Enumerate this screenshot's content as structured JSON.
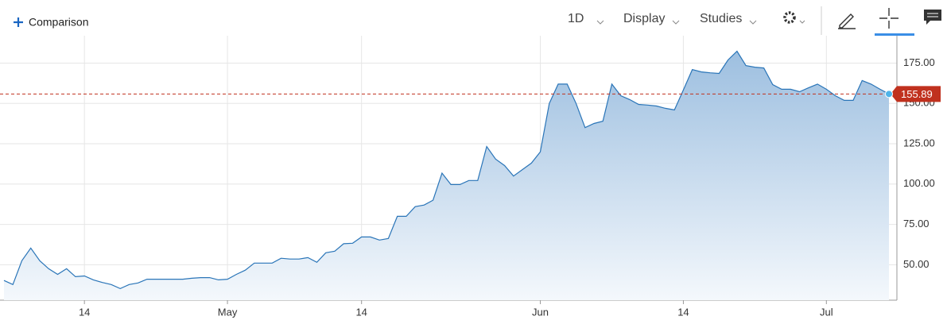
{
  "toolbar": {
    "comparison": "Comparison",
    "interval": "1D",
    "display": "Display",
    "studies": "Studies"
  },
  "chart_data": {
    "type": "area",
    "categories": [
      null,
      null,
      null,
      null,
      null,
      null,
      null,
      null,
      null,
      "14",
      null,
      null,
      null,
      null,
      null,
      null,
      null,
      null,
      null,
      null,
      null,
      null,
      null,
      null,
      null,
      "May",
      null,
      null,
      null,
      null,
      null,
      null,
      null,
      null,
      null,
      null,
      null,
      null,
      null,
      null,
      "14",
      null,
      null,
      null,
      null,
      null,
      null,
      null,
      null,
      null,
      null,
      null,
      null,
      null,
      null,
      null,
      null,
      null,
      null,
      null,
      "Jun",
      null,
      null,
      null,
      null,
      null,
      null,
      null,
      null,
      null,
      null,
      null,
      null,
      null,
      null,
      null,
      "14",
      null,
      null,
      null,
      null,
      null,
      null,
      null,
      null,
      null,
      null,
      null,
      null,
      null,
      null,
      null,
      "Jul",
      null,
      null,
      null,
      null,
      null,
      null,
      null
    ],
    "values": [
      40.2,
      37.7,
      52.5,
      60.3,
      52.5,
      47.5,
      44,
      47.5,
      42.6,
      43,
      40.6,
      39,
      37.7,
      35.2,
      37.7,
      38.7,
      41,
      41,
      41,
      41,
      41,
      41.6,
      42,
      42,
      40.6,
      41,
      44,
      46.6,
      51,
      51,
      51,
      54,
      53.5,
      53.5,
      54.4,
      51.5,
      57.4,
      58.4,
      63,
      63.3,
      67.2,
      67.2,
      65.3,
      66.2,
      80,
      80,
      86,
      87,
      90,
      106.8,
      99.7,
      99.7,
      102.2,
      102.2,
      123.3,
      115.5,
      111.5,
      105,
      109,
      113,
      120,
      150,
      162,
      162,
      150,
      135,
      137.6,
      139,
      162,
      154.8,
      152.4,
      149.4,
      149,
      148.4,
      147,
      146,
      158.3,
      171,
      169.6,
      169,
      168.6,
      177,
      182.4,
      173.5,
      172.5,
      172,
      161.7,
      158.8,
      158.8,
      157.3,
      159.7,
      162,
      158.8,
      154.8,
      151.9,
      151.9,
      164.2,
      162,
      158.8,
      155.89
    ],
    "color": "#2a75b8",
    "last_price": 155.89,
    "last_price_color": "#c0311e",
    "ylim": [
      28,
      192
    ],
    "yticks": [
      {
        "value": 50,
        "label": "50.00"
      },
      {
        "value": 75,
        "label": "75.00"
      },
      {
        "value": 100,
        "label": "100.00"
      },
      {
        "value": 125,
        "label": "125.00"
      },
      {
        "value": 150,
        "label": "150.00"
      },
      {
        "value": 175,
        "label": "175.00"
      }
    ],
    "grid": true
  }
}
